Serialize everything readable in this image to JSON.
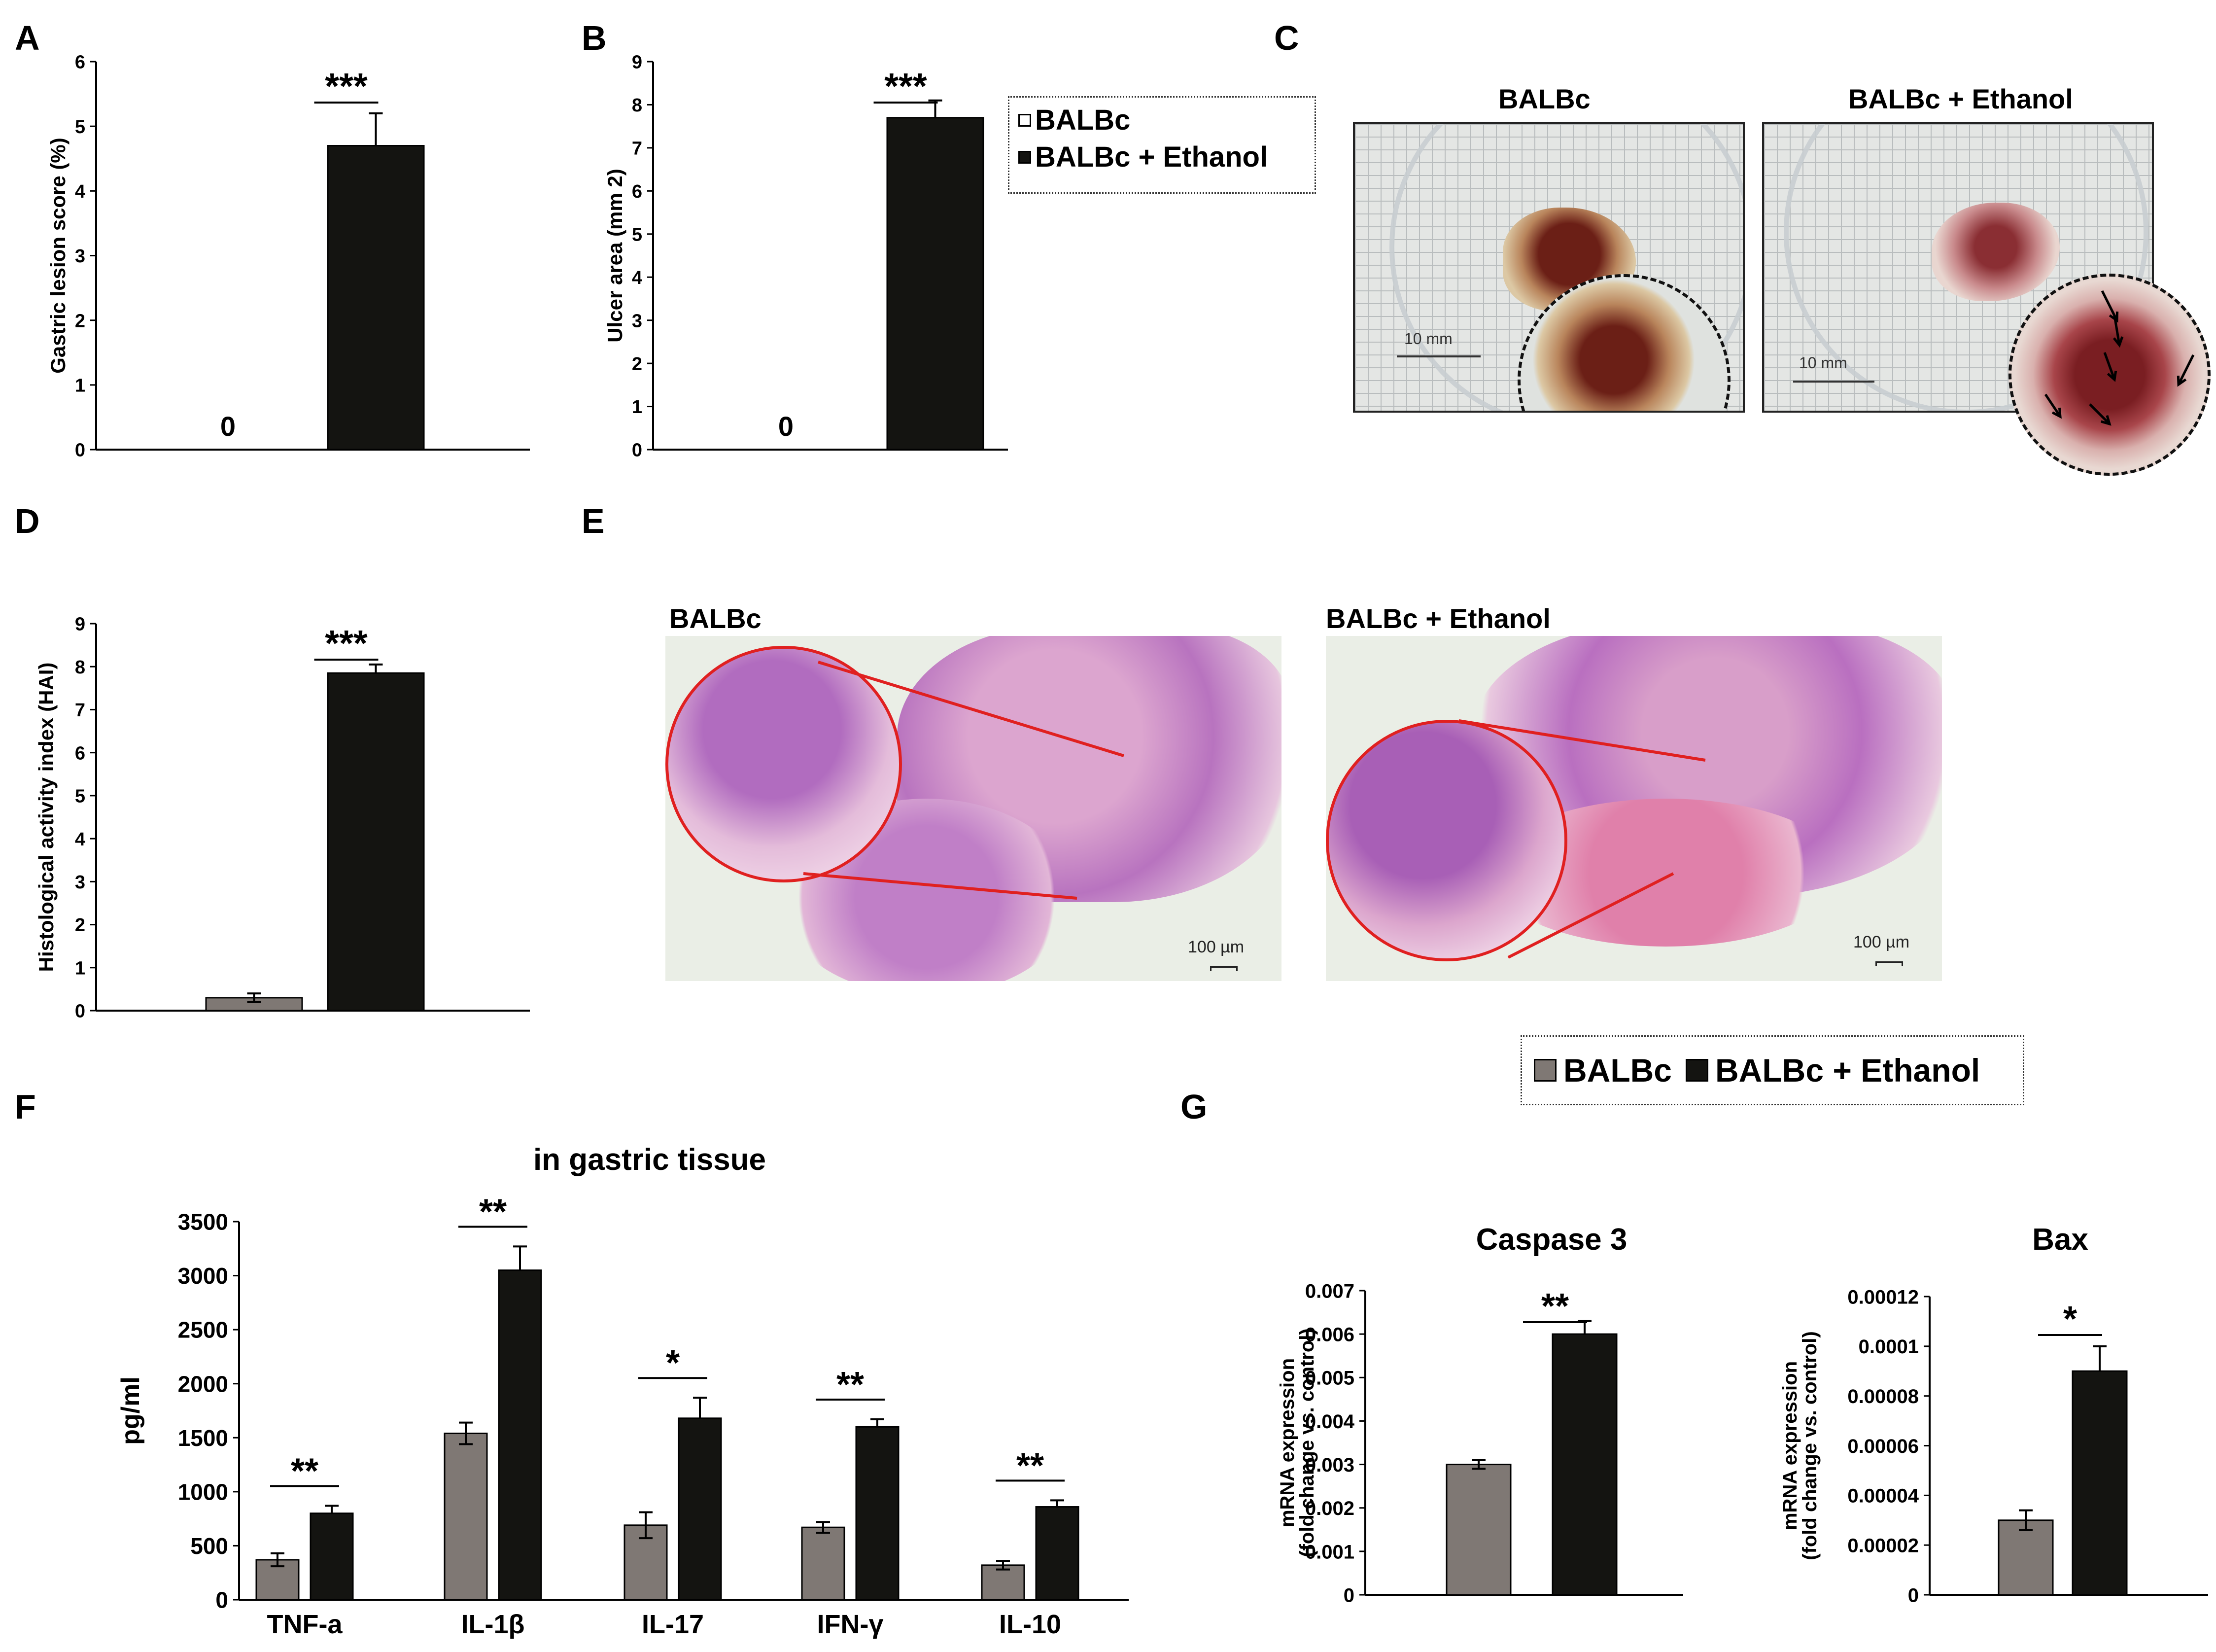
{
  "panel_labels": [
    "A",
    "B",
    "C",
    "D",
    "E",
    "F",
    "G"
  ],
  "legend_top": {
    "items": [
      "BALBc",
      "BALBc + Ethanol"
    ]
  },
  "legend_bottom": {
    "items": [
      "BALBc",
      "BALBc + Ethanol"
    ]
  },
  "colors": {
    "balbc": "#7f7874",
    "ethanol": "#141411",
    "annotation_red": "#e02020"
  },
  "panel_c": {
    "titles": [
      "BALBc",
      "BALBc + Ethanol"
    ],
    "scale_bar": "10 mm"
  },
  "panel_e": {
    "titles": [
      "BALBc",
      "BALBc + Ethanol"
    ],
    "scale_bar": "100 µm"
  },
  "panel_f": {
    "title": "in gastric tissue"
  },
  "chart_data": [
    {
      "id": "A",
      "type": "bar",
      "categories": [
        "BALBc",
        "BALBc + Ethanol"
      ],
      "values": [
        0,
        4.7
      ],
      "errors": [
        0,
        0.5
      ],
      "value_labels": [
        "0",
        ""
      ],
      "ylabel": "Gastric lesion score (%)",
      "ylim": [
        0,
        6
      ],
      "yticks": [
        "0",
        "1",
        "2",
        "3",
        "4",
        "5",
        "6"
      ],
      "significance": "***"
    },
    {
      "id": "B",
      "type": "bar",
      "categories": [
        "BALBc",
        "BALBc + Ethanol"
      ],
      "values": [
        0,
        7.7
      ],
      "errors": [
        0,
        0.4
      ],
      "value_labels": [
        "0",
        ""
      ],
      "ylabel": "Ulcer area (mm 2)",
      "ylim": [
        0,
        9
      ],
      "yticks": [
        "0",
        "1",
        "2",
        "3",
        "4",
        "5",
        "6",
        "7",
        "8",
        "9"
      ],
      "significance": "***"
    },
    {
      "id": "D",
      "type": "bar",
      "categories": [
        "BALBc",
        "BALBc + Ethanol"
      ],
      "values": [
        0.3,
        7.85
      ],
      "errors": [
        0.1,
        0.2
      ],
      "ylabel": "Histological activity index (HAI)",
      "ylim": [
        0,
        9
      ],
      "yticks": [
        "0",
        "1",
        "2",
        "3",
        "4",
        "5",
        "6",
        "7",
        "8",
        "9"
      ],
      "significance": "***"
    },
    {
      "id": "F",
      "type": "bar",
      "title": "in gastric tissue",
      "categories": [
        "TNF-a",
        "IL-1β",
        "IL-17",
        "IFN-γ",
        "IL-10"
      ],
      "series": [
        {
          "name": "BALBc",
          "values": [
            370,
            1540,
            690,
            670,
            320
          ],
          "errors": [
            60,
            100,
            120,
            50,
            40
          ]
        },
        {
          "name": "BALBc + Ethanol",
          "values": [
            800,
            3050,
            1680,
            1600,
            860
          ],
          "errors": [
            70,
            220,
            190,
            70,
            60
          ]
        }
      ],
      "ylabel": "pg/ml",
      "ylim": [
        0,
        3500
      ],
      "yticks": [
        "0",
        "500",
        "1000",
        "1500",
        "2000",
        "2500",
        "3000",
        "3500"
      ],
      "significance": [
        "**",
        "**",
        "*",
        "**",
        "**"
      ]
    },
    {
      "id": "G1",
      "type": "bar",
      "title": "Caspase 3",
      "categories": [
        "BALBc",
        "BALBc + Ethanol"
      ],
      "values": [
        0.003,
        0.006
      ],
      "errors": [
        0.0001,
        0.0003
      ],
      "ylabel": "mRNA expression (fold change vs. control)",
      "ylim": [
        0,
        0.007
      ],
      "yticks": [
        "0",
        "0.001",
        "0.002",
        "0.003",
        "0.004",
        "0.005",
        "0.006",
        "0.007"
      ],
      "significance": "**"
    },
    {
      "id": "G2",
      "type": "bar",
      "title": "Bax",
      "categories": [
        "BALBc",
        "BALBc + Ethanol"
      ],
      "values": [
        3e-05,
        9e-05
      ],
      "errors": [
        4e-06,
        1e-05
      ],
      "ylabel": "mRNA expression (fold change vs. control)",
      "ylim": [
        0,
        0.00012
      ],
      "yticks": [
        "0",
        "0.00002",
        "0.00004",
        "0.00006",
        "0.00008",
        "0.0001",
        "0.00012"
      ],
      "significance": "*"
    }
  ]
}
